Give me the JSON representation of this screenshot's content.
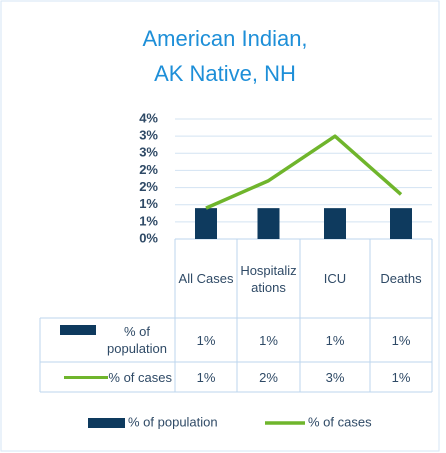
{
  "chart_data": {
    "type": "bar-line",
    "title": "American Indian, AK Native, NH",
    "categories": [
      "All Cases",
      "Hospitalizations",
      "ICU",
      "Deaths"
    ],
    "series": [
      {
        "name": "% of population",
        "type": "bar",
        "color": "#0e3a5e",
        "values": [
          0.9,
          0.9,
          0.9,
          0.9
        ],
        "value_labels": [
          "1%",
          "1%",
          "1%",
          "1%"
        ]
      },
      {
        "name": "% of cases",
        "type": "line",
        "color": "#6fb52c",
        "values": [
          0.9,
          1.7,
          3.0,
          1.3
        ],
        "value_labels": [
          "1%",
          "2%",
          "3%",
          "1%"
        ]
      }
    ],
    "ylim": [
      0,
      3.5
    ],
    "yticks": [
      {
        "value": 0,
        "label": "0%"
      },
      {
        "value": 0.5,
        "label": "1%"
      },
      {
        "value": 1,
        "label": "1%"
      },
      {
        "value": 1.5,
        "label": "2%"
      },
      {
        "value": 2,
        "label": "2%"
      },
      {
        "value": 2.5,
        "label": "3%"
      },
      {
        "value": 3,
        "label": "3%"
      },
      {
        "value": 3.5,
        "label": "4%"
      }
    ],
    "grid": true,
    "legend": "bottom"
  }
}
